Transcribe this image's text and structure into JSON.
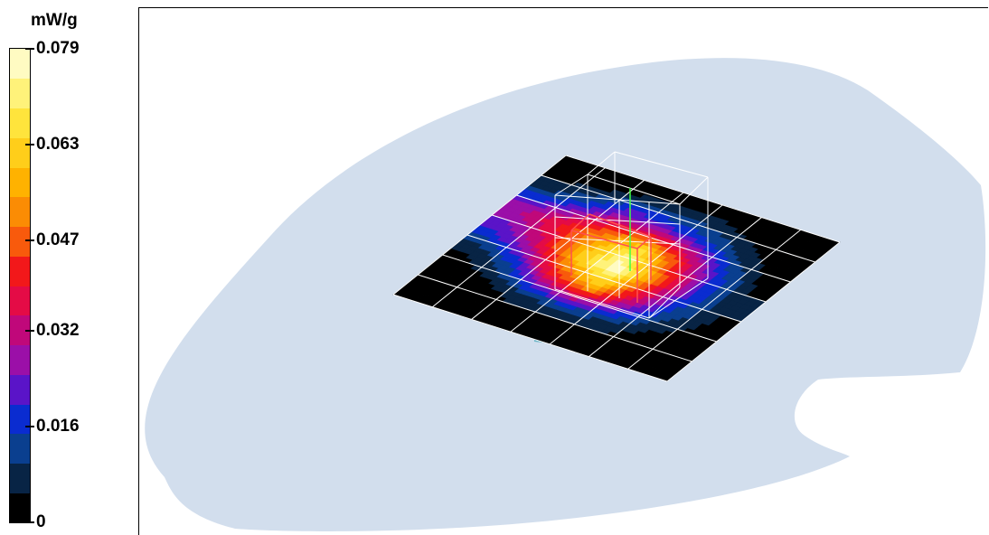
{
  "chart_data": {
    "type": "heatmap",
    "title": "",
    "colorbar": {
      "unit": "mW/g",
      "min": 0,
      "max": 0.079,
      "tick_labels": [
        "0.079",
        "0.063",
        "0.047",
        "0.032",
        "0.016",
        "0"
      ],
      "tick_values": [
        0.079,
        0.063,
        0.047,
        0.032,
        0.016,
        0
      ],
      "colors": [
        "#000000",
        "#082445",
        "#0a3f8f",
        "#0a2cd0",
        "#5a14c8",
        "#9b0fa8",
        "#c0087a",
        "#e40b46",
        "#f2181a",
        "#f85a0c",
        "#fb8c04",
        "#ffb200",
        "#ffce1a",
        "#ffe43c",
        "#fff27a",
        "#fffbc2"
      ]
    },
    "sar_grid": {
      "rows": 7,
      "cols": 7,
      "values": [
        [
          0.0,
          0.0,
          0.006,
          0.02,
          0.03,
          0.01,
          0.0
        ],
        [
          0.0,
          0.004,
          0.016,
          0.034,
          0.04,
          0.016,
          0.0
        ],
        [
          0.0,
          0.01,
          0.04,
          0.06,
          0.052,
          0.026,
          0.004
        ],
        [
          0.0,
          0.012,
          0.056,
          0.079,
          0.066,
          0.022,
          0.004
        ],
        [
          0.0,
          0.01,
          0.034,
          0.05,
          0.042,
          0.016,
          0.004
        ],
        [
          0.0,
          0.004,
          0.014,
          0.02,
          0.018,
          0.008,
          0.0
        ],
        [
          0.0,
          0.0,
          0.004,
          0.006,
          0.004,
          0.0,
          0.0
        ]
      ]
    },
    "grid": true,
    "legend_position": "left"
  },
  "colors": {
    "phantom": "#d2deed",
    "grid_lines": "#ffffff",
    "zoom_cube": "#ffffff",
    "probe_red": "#ff5050",
    "probe_green": "#40ff40",
    "device_bar": "#6fb7c9"
  }
}
